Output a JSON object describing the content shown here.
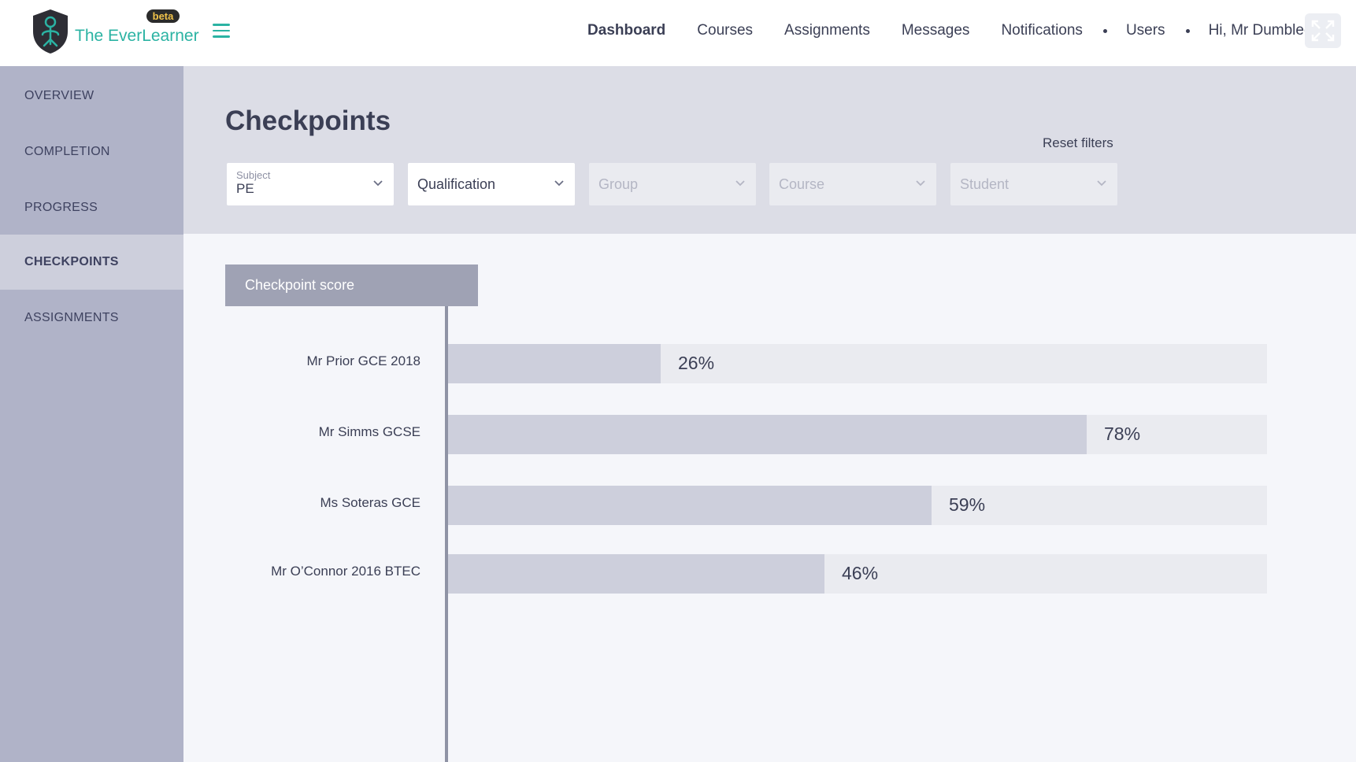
{
  "header": {
    "brand": "The EverLearner",
    "beta": "beta",
    "nav": [
      {
        "label": "Dashboard",
        "active": true
      },
      {
        "label": "Courses"
      },
      {
        "label": "Assignments"
      },
      {
        "label": "Messages"
      },
      {
        "label": "Notifications"
      },
      {
        "label": "Users"
      },
      {
        "label": "Hi, Mr Dumbledore"
      }
    ]
  },
  "sidebar": {
    "items": [
      {
        "label": "OVERVIEW"
      },
      {
        "label": "COMPLETION"
      },
      {
        "label": "PROGRESS"
      },
      {
        "label": "CHECKPOINTS",
        "active": true
      },
      {
        "label": "ASSIGNMENTS"
      }
    ]
  },
  "page": {
    "title": "Checkpoints",
    "reset_filters": "Reset filters"
  },
  "filters": {
    "subject": {
      "label": "Subject",
      "value": "PE"
    },
    "qualification": {
      "placeholder": "Qualification"
    },
    "group": {
      "placeholder": "Group"
    },
    "course": {
      "placeholder": "Course"
    },
    "student": {
      "placeholder": "Student"
    }
  },
  "colors": {
    "accent": "#2bb3a3",
    "sidebar": "#b0b3c8",
    "bar_fill": "#cdcfdc",
    "bar_track": "#eaebf0"
  },
  "chart_data": {
    "type": "bar",
    "orientation": "horizontal",
    "tab_label": "Checkpoint score",
    "categories": [
      "Mr Prior GCE 2018",
      "Mr Simms GCSE",
      "Ms Soteras GCE",
      "Mr O’Connor 2016 BTEC"
    ],
    "values": [
      26,
      78,
      59,
      46
    ],
    "value_labels": [
      "26%",
      "78%",
      "59%",
      "46%"
    ],
    "xlim": [
      0,
      100
    ],
    "grid": false
  }
}
